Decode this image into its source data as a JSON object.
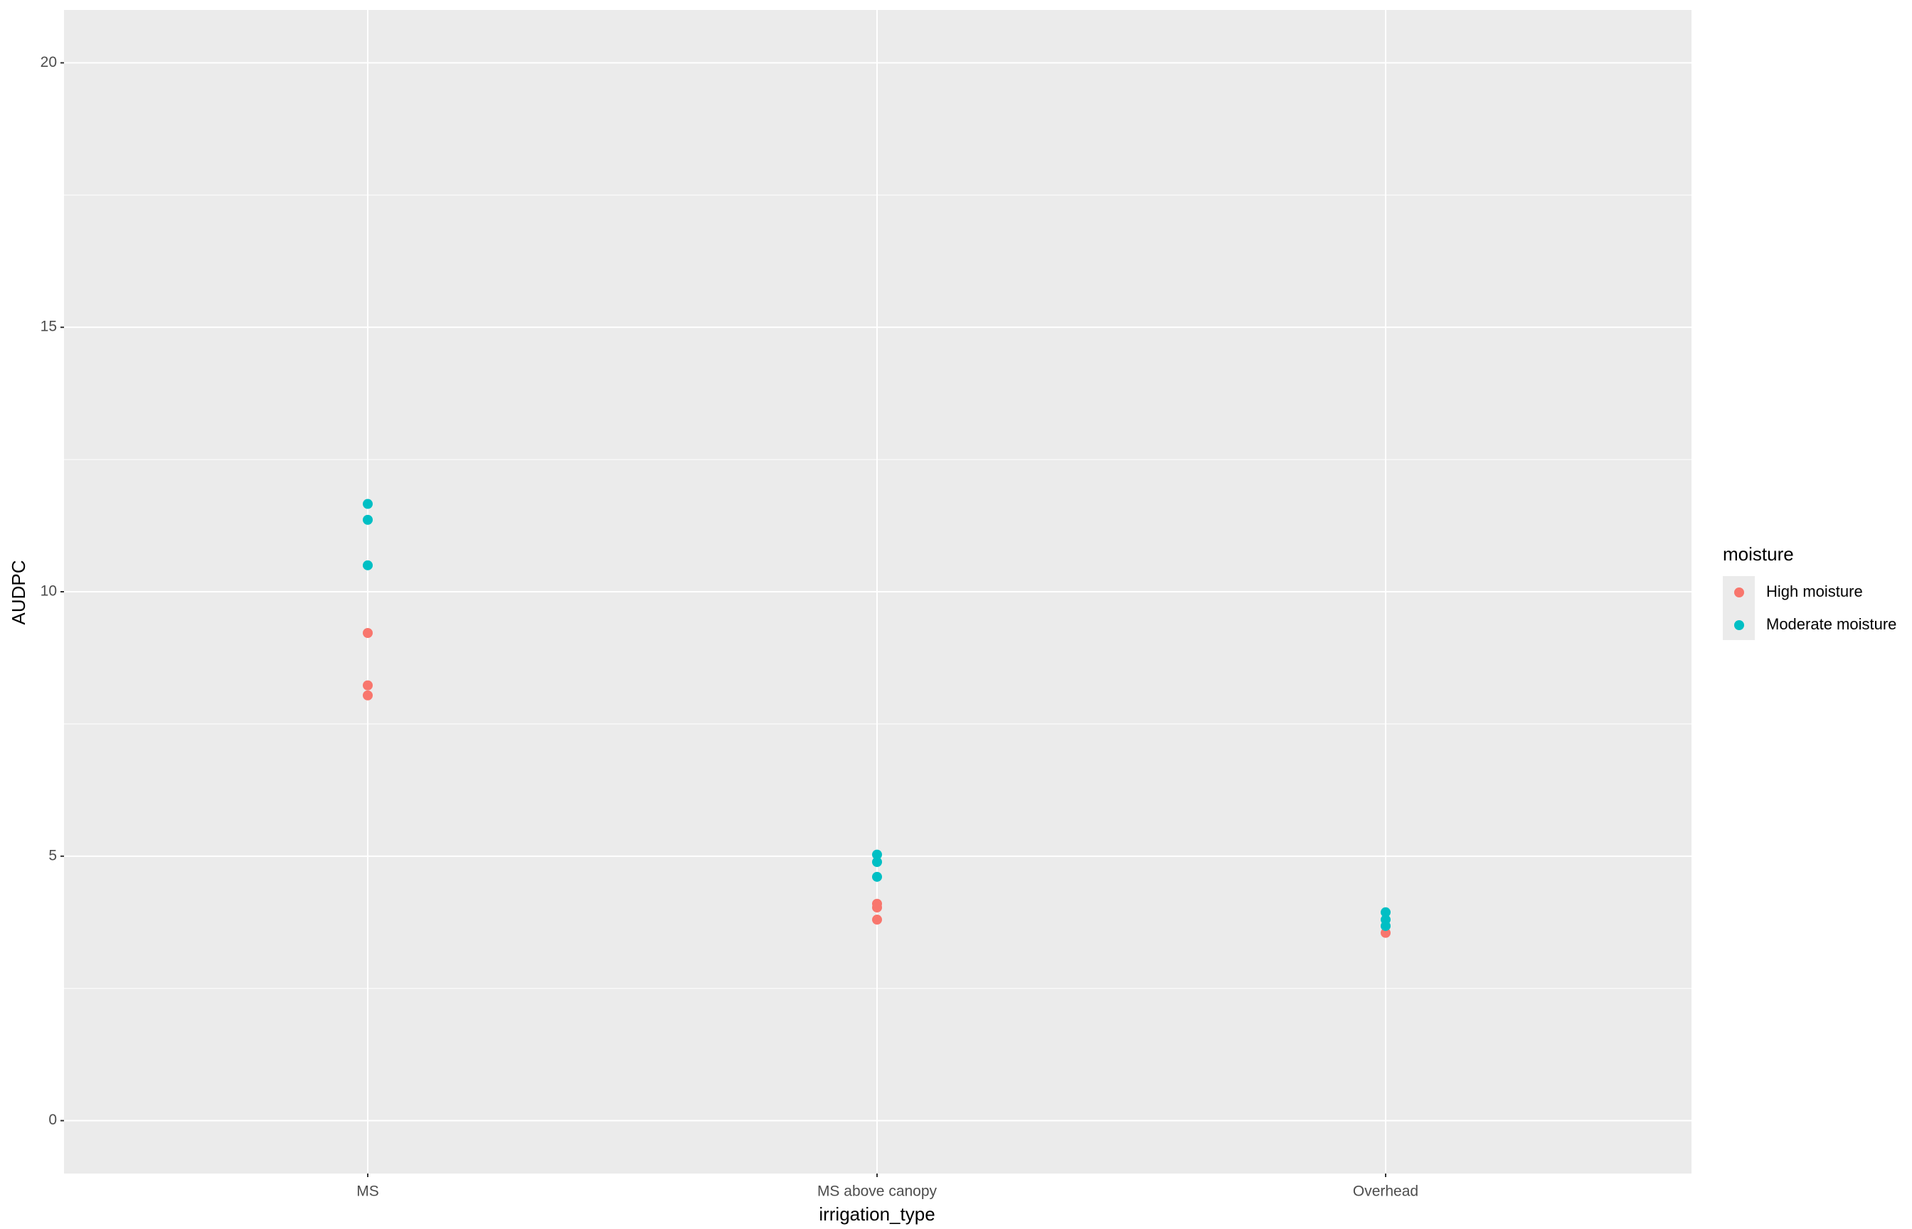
{
  "chart_data": {
    "type": "scatter",
    "x_label": "irrigation_type",
    "y_label": "AUDPC",
    "categories": [
      "MS",
      "MS above canopy",
      "Overhead"
    ],
    "legend_title": "moisture",
    "legend_position": "right",
    "grid": true,
    "ylim": [
      -1,
      21
    ],
    "yticks": [
      0,
      5,
      10,
      15,
      20
    ],
    "minor_yticks": [
      2.5,
      7.5,
      12.5,
      17.5
    ],
    "series": [
      {
        "name": "High moisture",
        "color": "#f8766d",
        "x": [
          "MS",
          "MS",
          "MS",
          "MS above canopy",
          "MS above canopy",
          "MS above canopy",
          "Overhead"
        ],
        "values": [
          9.22,
          8.23,
          8.04,
          4.1,
          4.03,
          3.8,
          3.55
        ]
      },
      {
        "name": "Moderate moisture",
        "color": "#00bfc4",
        "x": [
          "MS",
          "MS",
          "MS",
          "MS above canopy",
          "MS above canopy",
          "MS above canopy",
          "Overhead",
          "Overhead",
          "Overhead"
        ],
        "values": [
          11.66,
          11.36,
          10.5,
          5.03,
          4.89,
          4.61,
          3.94,
          3.8,
          3.68
        ]
      }
    ]
  }
}
